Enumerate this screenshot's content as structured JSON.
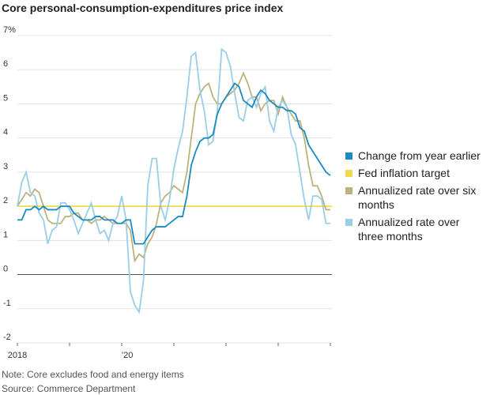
{
  "chart_data": {
    "type": "line",
    "title": "Core personal-consumption-expenditures price index",
    "note": "Note: Core excludes food and energy items",
    "source": "Source: Commerce Department",
    "categories": [
      "2018",
      null,
      null,
      null,
      null,
      null,
      null,
      null,
      null,
      null,
      null,
      null,
      null,
      null,
      null,
      null,
      null,
      null,
      null,
      null,
      null,
      null,
      null,
      null,
      "'20",
      null,
      null,
      null,
      null,
      null,
      null,
      null,
      null,
      null,
      null,
      null,
      null,
      null,
      null,
      null,
      null,
      null,
      null,
      null,
      null,
      null,
      null,
      null,
      null,
      null,
      null,
      null,
      null,
      null,
      null,
      null,
      null,
      null,
      null,
      null,
      null,
      null,
      null,
      null,
      null,
      null,
      null,
      null,
      null,
      null,
      null,
      null,
      null
    ],
    "ylim": [
      -2,
      7
    ],
    "yticks": [
      -2,
      -1,
      0,
      1,
      2,
      3,
      4,
      5,
      {
        "value": 6,
        "label": "6"
      },
      {
        "value": 7,
        "label": "7%"
      }
    ],
    "grid": true,
    "series": [
      {
        "name": "Change from year earlier",
        "color": "#1a8bc0",
        "values": [
          1.6,
          1.6,
          1.9,
          1.9,
          2.0,
          1.9,
          2.0,
          1.9,
          1.9,
          1.9,
          2.0,
          2.0,
          2.0,
          1.8,
          1.7,
          1.6,
          1.6,
          1.6,
          1.7,
          1.7,
          1.6,
          1.6,
          1.6,
          1.5,
          1.5,
          1.6,
          1.6,
          0.9,
          0.9,
          0.9,
          1.1,
          1.3,
          1.4,
          1.4,
          1.4,
          1.5,
          1.6,
          1.7,
          1.7,
          2.3,
          3.2,
          3.6,
          3.9,
          4.0,
          4.0,
          4.1,
          4.7,
          5.0,
          5.2,
          5.4,
          5.6,
          5.5,
          5.1,
          5.0,
          4.9,
          5.2,
          5.4,
          5.3,
          5.1,
          5.0,
          4.9,
          4.9,
          4.8,
          4.8,
          4.7,
          4.3,
          4.2,
          3.8,
          3.6,
          3.4,
          3.2,
          3.0,
          2.9
        ]
      },
      {
        "name": "Fed inflation target",
        "color": "#f3d94a",
        "value": 2
      },
      {
        "name": "Annualized rate over six months",
        "color": "#bdb27a",
        "values": [
          2.0,
          2.2,
          2.4,
          2.3,
          2.5,
          2.4,
          2.0,
          1.6,
          1.5,
          1.5,
          1.5,
          1.7,
          1.7,
          1.8,
          1.8,
          1.6,
          1.6,
          1.5,
          1.6,
          1.6,
          1.7,
          1.6,
          1.5,
          1.5,
          1.5,
          1.5,
          1.3,
          0.4,
          0.6,
          0.5,
          0.9,
          1.1,
          1.5,
          2.1,
          2.3,
          2.4,
          2.6,
          2.5,
          2.4,
          3.0,
          4.0,
          5.0,
          5.3,
          5.5,
          5.6,
          5.2,
          5.0,
          5.0,
          5.2,
          5.3,
          5.4,
          5.6,
          5.9,
          5.6,
          5.2,
          5.2,
          4.8,
          5.0,
          5.1,
          5.1,
          4.7,
          5.2,
          4.9,
          4.7,
          4.5,
          4.5,
          4.0,
          3.2,
          2.6,
          2.6,
          2.3,
          1.9,
          1.9
        ]
      },
      {
        "name": "Annualized rate over three months",
        "color": "#99cde8",
        "values": [
          2.0,
          2.7,
          3.0,
          2.4,
          2.3,
          1.8,
          1.6,
          0.9,
          1.3,
          1.4,
          2.1,
          2.1,
          1.9,
          1.6,
          1.2,
          1.5,
          1.8,
          2.1,
          1.6,
          1.2,
          1.3,
          1.0,
          1.5,
          1.7,
          2.3,
          1.6,
          -0.5,
          -0.9,
          -1.1,
          -0.2,
          2.6,
          3.4,
          3.4,
          2.0,
          1.6,
          2.2,
          3.1,
          3.7,
          4.2,
          5.2,
          6.4,
          6.5,
          5.4,
          4.8,
          3.8,
          3.9,
          4.8,
          6.6,
          6.5,
          6.1,
          5.3,
          4.6,
          4.5,
          5.1,
          5.2,
          4.9,
          5.3,
          5.5,
          4.5,
          4.2,
          4.9,
          5.1,
          4.9,
          4.1,
          3.8,
          3.0,
          2.2,
          1.6,
          2.3,
          2.3,
          2.2,
          1.5,
          1.5
        ]
      }
    ]
  }
}
